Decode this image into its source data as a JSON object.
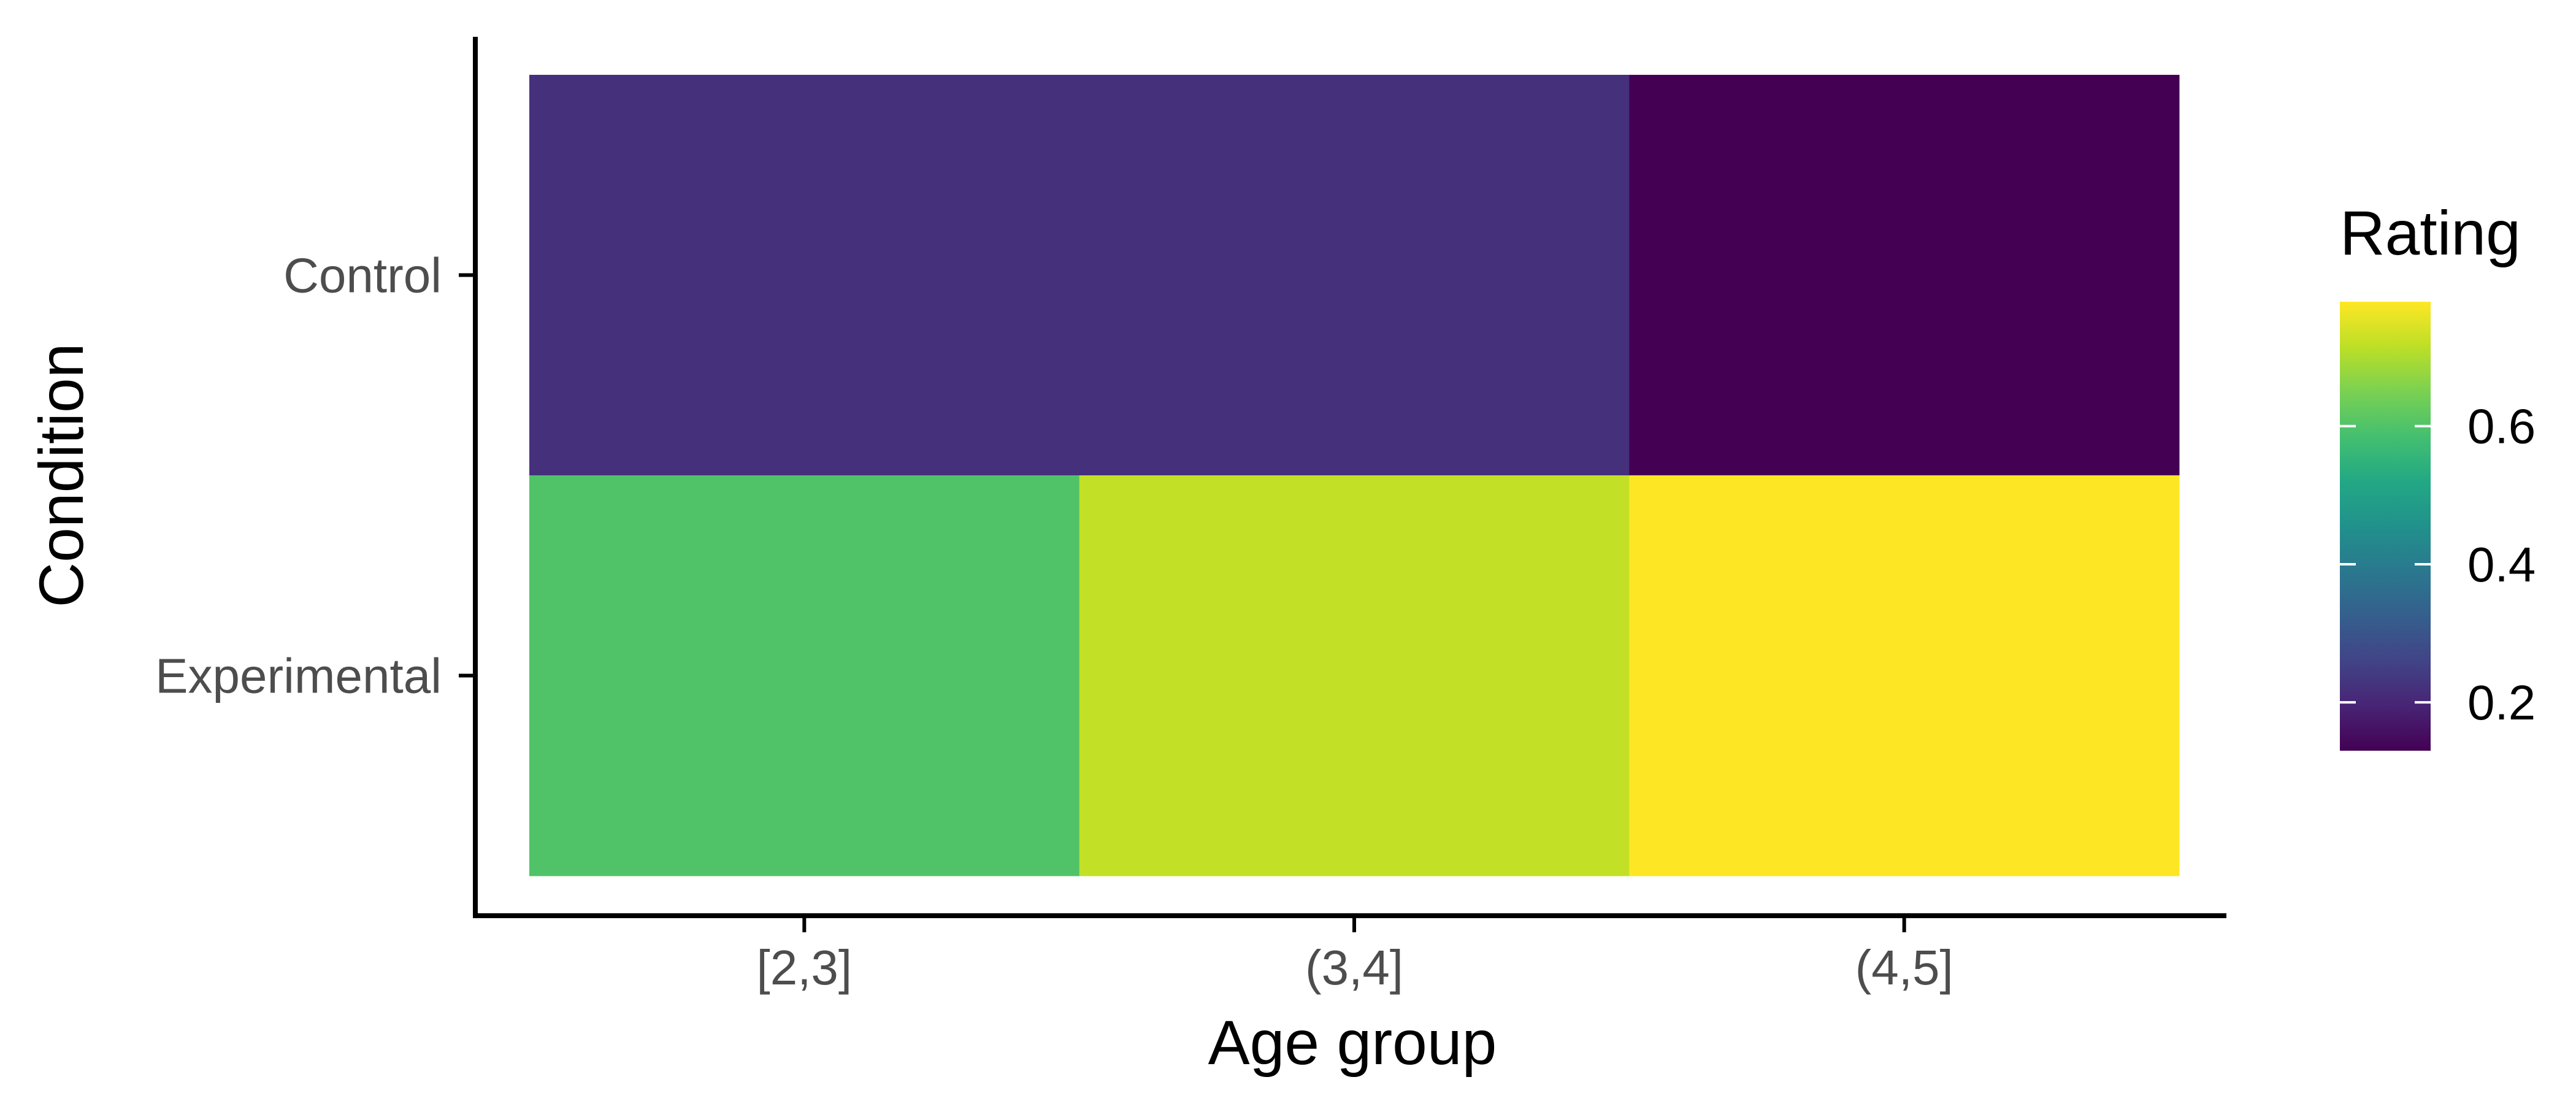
{
  "chart_data": {
    "type": "heatmap",
    "x_categories": [
      "[2,3]",
      "(3,4]",
      "(4,5]"
    ],
    "y_categories": [
      "Control",
      "Experimental"
    ],
    "cells": [
      {
        "x": "[2,3]",
        "y": "Control",
        "value": 0.22
      },
      {
        "x": "(3,4]",
        "y": "Control",
        "value": 0.22
      },
      {
        "x": "(4,5]",
        "y": "Control",
        "value": 0.13
      },
      {
        "x": "[2,3]",
        "y": "Experimental",
        "value": 0.6
      },
      {
        "x": "(3,4]",
        "y": "Experimental",
        "value": 0.72
      },
      {
        "x": "(4,5]",
        "y": "Experimental",
        "value": 0.78
      }
    ],
    "xlabel": "Age group",
    "ylabel": "Condition",
    "legend": {
      "title": "Rating",
      "colormap": "viridis",
      "range": [
        0.13,
        0.78
      ],
      "ticks": [
        0.2,
        0.4,
        0.6
      ],
      "position": "right"
    },
    "grid": false
  }
}
